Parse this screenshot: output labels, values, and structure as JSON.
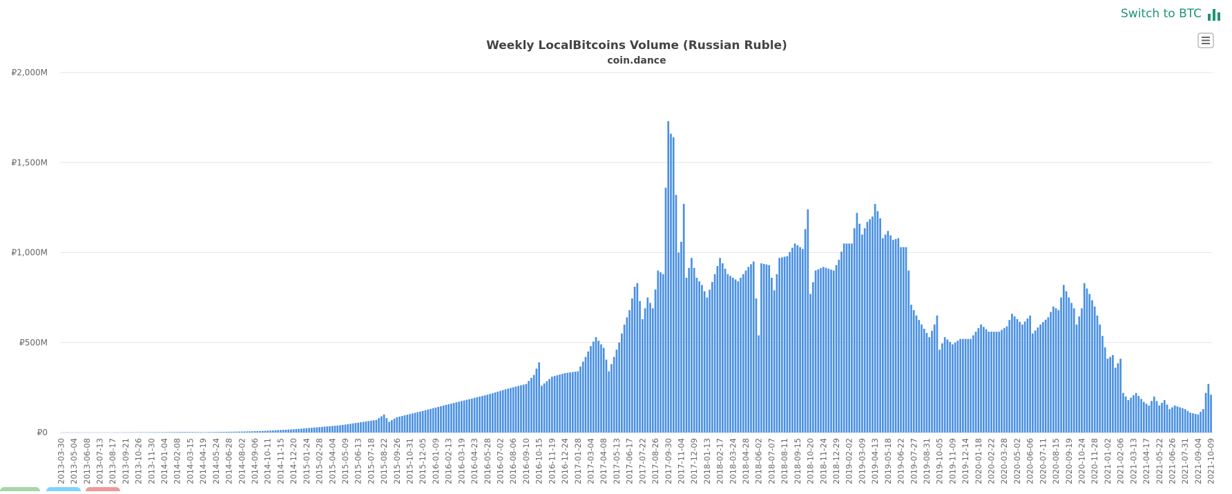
{
  "switch_label": "Switch to BTC",
  "switch_icon": "bar-chart-icon",
  "menu_icon": "hamburger-menu-icon",
  "colors": {
    "accent": "#1e9475",
    "bar": "#4a90e2",
    "grid": "#e6e6e6",
    "chip1": "#a5d6a7",
    "chip2": "#81d4fa",
    "chip3": "#ef9a9a"
  },
  "chart_data": {
    "type": "bar",
    "title": "Weekly LocalBitcoins Volume (Russian Ruble)",
    "subtitle": "coin.dance",
    "yticks": [
      "₽0",
      "₽500M",
      "₽1,000M",
      "₽1,500M",
      "₽2,000M"
    ],
    "ylim": [
      0,
      2000
    ],
    "grid": true,
    "start_date": "2013-03-30",
    "x_label_step_weeks": 5,
    "anchors": [
      [
        0,
        0
      ],
      [
        20,
        0
      ],
      [
        40,
        2
      ],
      [
        48,
        3
      ],
      [
        55,
        2
      ],
      [
        65,
        4
      ],
      [
        72,
        6
      ],
      [
        80,
        10
      ],
      [
        90,
        18
      ],
      [
        100,
        30
      ],
      [
        108,
        40
      ],
      [
        115,
        55
      ],
      [
        122,
        70
      ],
      [
        125,
        100
      ],
      [
        127,
        60
      ],
      [
        130,
        85
      ],
      [
        140,
        120
      ],
      [
        148,
        150
      ],
      [
        155,
        175
      ],
      [
        165,
        210
      ],
      [
        172,
        240
      ],
      [
        180,
        270
      ],
      [
        183,
        320
      ],
      [
        185,
        390
      ],
      [
        186,
        260
      ],
      [
        190,
        310
      ],
      [
        195,
        330
      ],
      [
        200,
        340
      ],
      [
        203,
        420
      ],
      [
        205,
        480
      ],
      [
        207,
        530
      ],
      [
        210,
        470
      ],
      [
        212,
        340
      ],
      [
        214,
        420
      ],
      [
        216,
        500
      ],
      [
        218,
        600
      ],
      [
        220,
        680
      ],
      [
        222,
        810
      ],
      [
        223,
        830
      ],
      [
        225,
        630
      ],
      [
        227,
        750
      ],
      [
        229,
        690
      ],
      [
        231,
        900
      ],
      [
        233,
        880
      ],
      [
        234,
        1360
      ],
      [
        235,
        1730
      ],
      [
        236,
        1660
      ],
      [
        237,
        1640
      ],
      [
        238,
        1320
      ],
      [
        239,
        1000
      ],
      [
        240,
        1060
      ],
      [
        241,
        1270
      ],
      [
        242,
        860
      ],
      [
        244,
        970
      ],
      [
        246,
        860
      ],
      [
        248,
        820
      ],
      [
        250,
        750
      ],
      [
        253,
        880
      ],
      [
        255,
        970
      ],
      [
        258,
        880
      ],
      [
        262,
        840
      ],
      [
        266,
        920
      ],
      [
        268,
        950
      ],
      [
        270,
        540
      ],
      [
        271,
        940
      ],
      [
        274,
        930
      ],
      [
        276,
        790
      ],
      [
        278,
        970
      ],
      [
        281,
        980
      ],
      [
        284,
        1050
      ],
      [
        287,
        1020
      ],
      [
        289,
        1240
      ],
      [
        290,
        770
      ],
      [
        292,
        900
      ],
      [
        295,
        920
      ],
      [
        299,
        900
      ],
      [
        301,
        960
      ],
      [
        303,
        1050
      ],
      [
        306,
        1050
      ],
      [
        308,
        1220
      ],
      [
        310,
        1100
      ],
      [
        312,
        1170
      ],
      [
        314,
        1200
      ],
      [
        315,
        1270
      ],
      [
        317,
        1190
      ],
      [
        318,
        1080
      ],
      [
        320,
        1120
      ],
      [
        322,
        1070
      ],
      [
        324,
        1080
      ],
      [
        325,
        1030
      ],
      [
        327,
        1030
      ],
      [
        328,
        900
      ],
      [
        329,
        710
      ],
      [
        331,
        650
      ],
      [
        333,
        600
      ],
      [
        336,
        530
      ],
      [
        338,
        600
      ],
      [
        339,
        650
      ],
      [
        340,
        460
      ],
      [
        342,
        530
      ],
      [
        345,
        490
      ],
      [
        348,
        520
      ],
      [
        352,
        520
      ],
      [
        356,
        600
      ],
      [
        359,
        560
      ],
      [
        363,
        560
      ],
      [
        366,
        590
      ],
      [
        368,
        660
      ],
      [
        372,
        600
      ],
      [
        375,
        650
      ],
      [
        376,
        550
      ],
      [
        379,
        600
      ],
      [
        382,
        640
      ],
      [
        384,
        700
      ],
      [
        386,
        680
      ],
      [
        388,
        820
      ],
      [
        390,
        750
      ],
      [
        392,
        690
      ],
      [
        393,
        600
      ],
      [
        395,
        690
      ],
      [
        396,
        830
      ],
      [
        398,
        770
      ],
      [
        400,
        700
      ],
      [
        402,
        600
      ],
      [
        405,
        410
      ],
      [
        407,
        430
      ],
      [
        408,
        360
      ],
      [
        410,
        410
      ],
      [
        411,
        220
      ],
      [
        413,
        180
      ],
      [
        416,
        220
      ],
      [
        419,
        170
      ],
      [
        421,
        150
      ],
      [
        423,
        200
      ],
      [
        425,
        150
      ],
      [
        427,
        180
      ],
      [
        429,
        130
      ],
      [
        431,
        150
      ],
      [
        433,
        140
      ],
      [
        435,
        130
      ],
      [
        437,
        110
      ],
      [
        440,
        100
      ],
      [
        442,
        130
      ],
      [
        443,
        220
      ],
      [
        444,
        270
      ],
      [
        445,
        210
      ]
    ]
  }
}
